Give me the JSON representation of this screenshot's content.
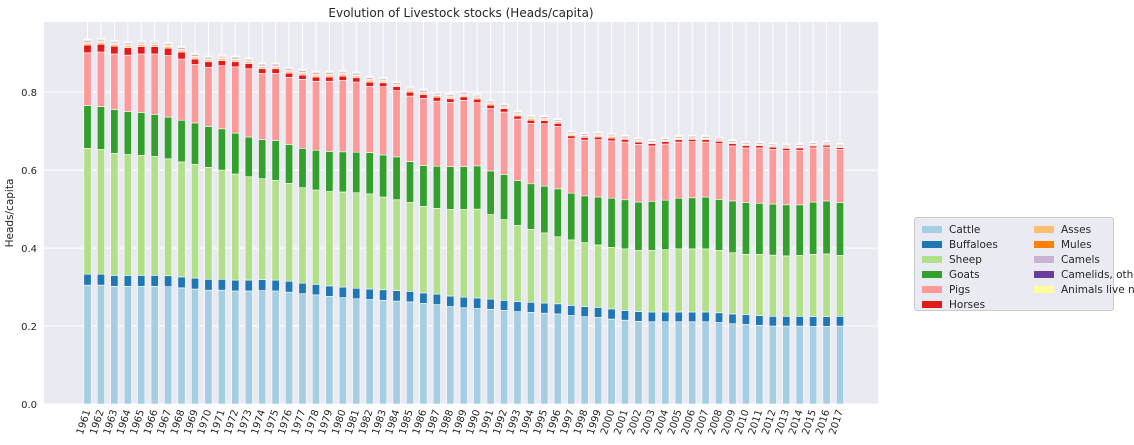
{
  "chart_data": {
    "type": "bar",
    "stacked": true,
    "title": "Evolution of Livestock stocks (Heads/capita)",
    "xlabel": "",
    "ylabel": "Heads/capita",
    "ylim": [
      0,
      0.98
    ],
    "yticks": [
      0.0,
      0.2,
      0.4,
      0.6,
      0.8
    ],
    "ytick_labels": [
      "0.0",
      "0.2",
      "0.4",
      "0.6",
      "0.8"
    ],
    "grid": true,
    "legend_placement": "right",
    "categories": [
      "1961",
      "1962",
      "1963",
      "1964",
      "1965",
      "1966",
      "1967",
      "1968",
      "1969",
      "1970",
      "1971",
      "1972",
      "1973",
      "1974",
      "1975",
      "1976",
      "1977",
      "1978",
      "1979",
      "1980",
      "1981",
      "1982",
      "1983",
      "1984",
      "1985",
      "1986",
      "1987",
      "1988",
      "1989",
      "1990",
      "1991",
      "1992",
      "1993",
      "1994",
      "1995",
      "1996",
      "1997",
      "1998",
      "1999",
      "2000",
      "2001",
      "2002",
      "2003",
      "2004",
      "2005",
      "2006",
      "2007",
      "2008",
      "2009",
      "2010",
      "2011",
      "2012",
      "2013",
      "2014",
      "2015",
      "2016",
      "2017"
    ],
    "series": [
      {
        "name": "Cattle",
        "color": "#a6cee3",
        "values": [
          0.305,
          0.305,
          0.302,
          0.302,
          0.302,
          0.302,
          0.301,
          0.298,
          0.295,
          0.292,
          0.292,
          0.29,
          0.29,
          0.291,
          0.29,
          0.287,
          0.283,
          0.28,
          0.276,
          0.273,
          0.27,
          0.268,
          0.266,
          0.264,
          0.262,
          0.258,
          0.255,
          0.25,
          0.247,
          0.245,
          0.243,
          0.24,
          0.237,
          0.235,
          0.233,
          0.231,
          0.227,
          0.224,
          0.222,
          0.218,
          0.215,
          0.212,
          0.211,
          0.211,
          0.211,
          0.211,
          0.211,
          0.209,
          0.206,
          0.204,
          0.202,
          0.2,
          0.2,
          0.2,
          0.199,
          0.199,
          0.2
        ]
      },
      {
        "name": "Buffaloes",
        "color": "#1f78b4",
        "values": [
          0.028,
          0.028,
          0.028,
          0.028,
          0.028,
          0.028,
          0.028,
          0.028,
          0.028,
          0.028,
          0.028,
          0.028,
          0.028,
          0.028,
          0.028,
          0.028,
          0.027,
          0.027,
          0.027,
          0.027,
          0.027,
          0.027,
          0.027,
          0.027,
          0.027,
          0.027,
          0.027,
          0.027,
          0.027,
          0.027,
          0.026,
          0.026,
          0.026,
          0.026,
          0.026,
          0.026,
          0.026,
          0.026,
          0.026,
          0.026,
          0.025,
          0.025,
          0.025,
          0.025,
          0.025,
          0.025,
          0.025,
          0.025,
          0.025,
          0.025,
          0.025,
          0.025,
          0.025,
          0.025,
          0.025,
          0.025,
          0.025
        ]
      },
      {
        "name": "Sheep",
        "color": "#b2df8a",
        "values": [
          0.323,
          0.32,
          0.313,
          0.31,
          0.308,
          0.305,
          0.3,
          0.295,
          0.292,
          0.287,
          0.28,
          0.272,
          0.265,
          0.259,
          0.256,
          0.251,
          0.245,
          0.242,
          0.242,
          0.244,
          0.245,
          0.244,
          0.238,
          0.233,
          0.228,
          0.222,
          0.22,
          0.222,
          0.225,
          0.228,
          0.217,
          0.207,
          0.195,
          0.187,
          0.18,
          0.172,
          0.168,
          0.164,
          0.16,
          0.158,
          0.158,
          0.157,
          0.158,
          0.16,
          0.162,
          0.162,
          0.162,
          0.16,
          0.157,
          0.155,
          0.157,
          0.157,
          0.155,
          0.156,
          0.16,
          0.161,
          0.156
        ]
      },
      {
        "name": "Goats",
        "color": "#33a02c",
        "values": [
          0.11,
          0.11,
          0.112,
          0.11,
          0.11,
          0.108,
          0.107,
          0.107,
          0.106,
          0.105,
          0.106,
          0.105,
          0.102,
          0.1,
          0.102,
          0.1,
          0.101,
          0.102,
          0.103,
          0.103,
          0.104,
          0.106,
          0.108,
          0.11,
          0.105,
          0.105,
          0.108,
          0.11,
          0.11,
          0.111,
          0.112,
          0.116,
          0.115,
          0.117,
          0.12,
          0.123,
          0.12,
          0.12,
          0.123,
          0.126,
          0.126,
          0.124,
          0.126,
          0.127,
          0.13,
          0.131,
          0.133,
          0.131,
          0.133,
          0.133,
          0.131,
          0.131,
          0.131,
          0.13,
          0.134,
          0.136,
          0.136
        ]
      },
      {
        "name": "Pigs",
        "color": "#fb9a99",
        "values": [
          0.135,
          0.14,
          0.143,
          0.145,
          0.15,
          0.155,
          0.158,
          0.157,
          0.15,
          0.152,
          0.162,
          0.17,
          0.175,
          0.17,
          0.172,
          0.172,
          0.177,
          0.177,
          0.18,
          0.183,
          0.18,
          0.17,
          0.175,
          0.17,
          0.168,
          0.172,
          0.167,
          0.165,
          0.17,
          0.162,
          0.16,
          0.16,
          0.158,
          0.155,
          0.16,
          0.16,
          0.14,
          0.143,
          0.147,
          0.147,
          0.148,
          0.148,
          0.142,
          0.144,
          0.144,
          0.144,
          0.141,
          0.143,
          0.141,
          0.14,
          0.142,
          0.14,
          0.139,
          0.14,
          0.139,
          0.138,
          0.136
        ]
      },
      {
        "name": "Horses",
        "color": "#e31a1c",
        "values": [
          0.02,
          0.02,
          0.02,
          0.019,
          0.019,
          0.019,
          0.019,
          0.018,
          0.014,
          0.014,
          0.013,
          0.013,
          0.013,
          0.012,
          0.012,
          0.011,
          0.011,
          0.011,
          0.011,
          0.011,
          0.011,
          0.011,
          0.01,
          0.01,
          0.01,
          0.01,
          0.01,
          0.009,
          0.009,
          0.009,
          0.009,
          0.009,
          0.008,
          0.008,
          0.008,
          0.008,
          0.007,
          0.007,
          0.007,
          0.007,
          0.007,
          0.006,
          0.006,
          0.006,
          0.006,
          0.006,
          0.006,
          0.006,
          0.006,
          0.006,
          0.006,
          0.006,
          0.006,
          0.006,
          0.005,
          0.005,
          0.005
        ]
      },
      {
        "name": "Asses",
        "color": "#fdbf6f",
        "values": [
          0.005,
          0.005,
          0.005,
          0.005,
          0.005,
          0.005,
          0.005,
          0.005,
          0.005,
          0.005,
          0.005,
          0.005,
          0.005,
          0.005,
          0.005,
          0.005,
          0.005,
          0.005,
          0.005,
          0.005,
          0.005,
          0.005,
          0.004,
          0.004,
          0.004,
          0.004,
          0.004,
          0.004,
          0.004,
          0.004,
          0.004,
          0.004,
          0.004,
          0.004,
          0.004,
          0.004,
          0.004,
          0.004,
          0.004,
          0.004,
          0.003,
          0.003,
          0.003,
          0.003,
          0.003,
          0.003,
          0.003,
          0.003,
          0.003,
          0.003,
          0.003,
          0.003,
          0.003,
          0.003,
          0.003,
          0.003,
          0.003
        ]
      },
      {
        "name": "Mules",
        "color": "#ff7f00",
        "values": [
          0.002,
          0.002,
          0.002,
          0.002,
          0.002,
          0.002,
          0.002,
          0.002,
          0.002,
          0.002,
          0.002,
          0.002,
          0.002,
          0.002,
          0.002,
          0.002,
          0.002,
          0.002,
          0.002,
          0.002,
          0.002,
          0.002,
          0.002,
          0.002,
          0.002,
          0.002,
          0.002,
          0.002,
          0.002,
          0.002,
          0.002,
          0.002,
          0.002,
          0.002,
          0.002,
          0.002,
          0.002,
          0.002,
          0.002,
          0.002,
          0.001,
          0.001,
          0.001,
          0.001,
          0.001,
          0.001,
          0.001,
          0.001,
          0.001,
          0.001,
          0.001,
          0.001,
          0.001,
          0.001,
          0.001,
          0.001,
          0.001
        ]
      },
      {
        "name": "Camels",
        "color": "#cab2d6",
        "values": [
          0.004,
          0.004,
          0.004,
          0.004,
          0.004,
          0.004,
          0.004,
          0.004,
          0.004,
          0.004,
          0.004,
          0.004,
          0.004,
          0.004,
          0.004,
          0.004,
          0.004,
          0.004,
          0.004,
          0.004,
          0.004,
          0.004,
          0.004,
          0.004,
          0.004,
          0.004,
          0.004,
          0.004,
          0.004,
          0.004,
          0.004,
          0.004,
          0.004,
          0.004,
          0.004,
          0.004,
          0.004,
          0.004,
          0.004,
          0.004,
          0.004,
          0.004,
          0.004,
          0.004,
          0.004,
          0.004,
          0.004,
          0.004,
          0.004,
          0.004,
          0.004,
          0.004,
          0.004,
          0.004,
          0.004,
          0.004,
          0.004
        ]
      },
      {
        "name": "Camelids, other",
        "color": "#6a3d9a",
        "values": [
          0.002,
          0.002,
          0.002,
          0.002,
          0.002,
          0.002,
          0.002,
          0.002,
          0.002,
          0.002,
          0.002,
          0.002,
          0.002,
          0.002,
          0.002,
          0.002,
          0.002,
          0.002,
          0.002,
          0.002,
          0.002,
          0.002,
          0.002,
          0.002,
          0.002,
          0.002,
          0.002,
          0.002,
          0.002,
          0.002,
          0.001,
          0.001,
          0.001,
          0.001,
          0.001,
          0.001,
          0.001,
          0.001,
          0.001,
          0.001,
          0.001,
          0.001,
          0.001,
          0.001,
          0.001,
          0.001,
          0.001,
          0.001,
          0.001,
          0.001,
          0.001,
          0.001,
          0.001,
          0.001,
          0.001,
          0.001,
          0.001
        ]
      },
      {
        "name": "Animals live nes",
        "color": "#ffff99",
        "values": [
          0.002,
          0.002,
          0.002,
          0.002,
          0.002,
          0.002,
          0.002,
          0.002,
          0.002,
          0.002,
          0.002,
          0.002,
          0.002,
          0.002,
          0.002,
          0.002,
          0.002,
          0.002,
          0.002,
          0.002,
          0.002,
          0.002,
          0.002,
          0.002,
          0.002,
          0.002,
          0.002,
          0.002,
          0.002,
          0.002,
          0.002,
          0.002,
          0.002,
          0.002,
          0.002,
          0.002,
          0.002,
          0.002,
          0.002,
          0.002,
          0.002,
          0.002,
          0.002,
          0.002,
          0.002,
          0.002,
          0.002,
          0.002,
          0.002,
          0.002,
          0.002,
          0.002,
          0.002,
          0.002,
          0.002,
          0.002,
          0.002
        ]
      }
    ]
  },
  "legend": {
    "items": [
      "Cattle",
      "Buffaloes",
      "Sheep",
      "Goats",
      "Pigs",
      "Horses",
      "Asses",
      "Mules",
      "Camels",
      "Camelids, other",
      "Animals live nes"
    ]
  },
  "colors": {
    "plot_background": "#eaeaf2",
    "grid": "#ffffff",
    "text": "#262626"
  }
}
